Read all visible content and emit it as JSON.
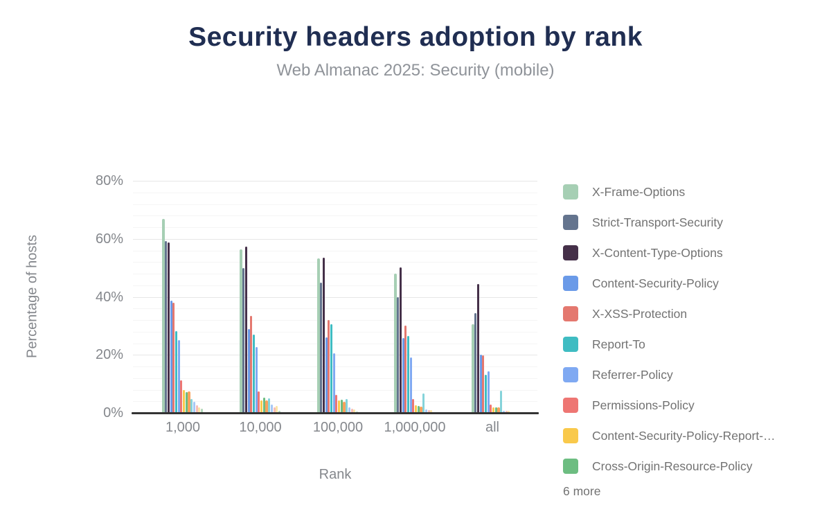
{
  "header": {
    "title": "Security headers adoption by rank",
    "subtitle": "Web Almanac 2025: Security (mobile)"
  },
  "chart_data": {
    "type": "bar",
    "title": "Security headers adoption by rank",
    "subtitle": "Web Almanac 2025: Security (mobile)",
    "xlabel": "Rank",
    "ylabel": "Percentage of hosts",
    "ylim": [
      0,
      80
    ],
    "yticks": [
      {
        "value": 0,
        "label": "0%"
      },
      {
        "value": 20,
        "label": "20%"
      },
      {
        "value": 40,
        "label": "40%"
      },
      {
        "value": 60,
        "label": "60%"
      },
      {
        "value": 80,
        "label": "80%"
      }
    ],
    "grid": "horizontal major every 20%, faint minor every 4%",
    "legend_position": "right",
    "legend_overflow_label": "6 more",
    "categories": [
      "1,000",
      "10,000",
      "100,000",
      "1,000,000",
      "all"
    ],
    "series": [
      {
        "name": "X-Frame-Options",
        "color": "#a6cfb4",
        "in_legend": true,
        "values": [
          66.8,
          56.4,
          53.3,
          47.9,
          30.5
        ]
      },
      {
        "name": "Strict-Transport-Security",
        "color": "#64748e",
        "in_legend": true,
        "values": [
          59.3,
          49.8,
          44.8,
          40.0,
          34.5
        ]
      },
      {
        "name": "X-Content-Type-Options",
        "color": "#453049",
        "in_legend": true,
        "values": [
          58.8,
          57.2,
          53.6,
          50.2,
          44.5
        ]
      },
      {
        "name": "Content-Security-Policy",
        "color": "#6a9ae8",
        "in_legend": true,
        "values": [
          38.8,
          28.8,
          26.1,
          25.7,
          20.0
        ]
      },
      {
        "name": "X-XSS-Protection",
        "color": "#e4786f",
        "in_legend": true,
        "values": [
          37.9,
          33.4,
          32.1,
          30.0,
          19.8
        ]
      },
      {
        "name": "Report-To",
        "color": "#3fbcc2",
        "in_legend": true,
        "values": [
          28.1,
          27.1,
          30.5,
          26.4,
          13.1
        ]
      },
      {
        "name": "Referrer-Policy",
        "color": "#7fa9f2",
        "in_legend": true,
        "values": [
          25.0,
          22.6,
          20.5,
          19.0,
          14.3
        ]
      },
      {
        "name": "Permissions-Policy",
        "color": "#ee7673",
        "in_legend": true,
        "values": [
          11.2,
          7.4,
          6.2,
          4.8,
          2.9
        ]
      },
      {
        "name": "Content-Security-Policy-Report-…",
        "color": "#f9c94b",
        "in_legend": true,
        "values": [
          7.9,
          4.4,
          4.3,
          2.6,
          1.9
        ]
      },
      {
        "name": "Cross-Origin-Resource-Policy",
        "color": "#6dbd81",
        "in_legend": true,
        "values": [
          7.1,
          5.2,
          4.5,
          2.4,
          1.9
        ]
      },
      {
        "name": "",
        "color": "#f8a25b",
        "in_legend": false,
        "values": [
          7.4,
          4.4,
          3.8,
          2.2,
          1.9
        ]
      },
      {
        "name": "",
        "color": "#85d3da",
        "in_legend": false,
        "values": [
          4.8,
          5.0,
          4.8,
          6.7,
          7.6
        ]
      },
      {
        "name": "",
        "color": "#a7c8f6",
        "in_legend": false,
        "values": [
          3.8,
          2.9,
          2.0,
          1.2,
          0.8
        ]
      },
      {
        "name": "",
        "color": "#f6bcb8",
        "in_legend": false,
        "values": [
          2.6,
          1.9,
          1.5,
          1.0,
          0.8
        ]
      },
      {
        "name": "",
        "color": "#fae5a6",
        "in_legend": false,
        "values": [
          1.9,
          2.4,
          1.3,
          1.0,
          0.8
        ]
      },
      {
        "name": "",
        "color": "#b2d8bb",
        "in_legend": false,
        "values": [
          1.5,
          0.8,
          0.5,
          0.3,
          0.3
        ]
      }
    ]
  },
  "colors": {
    "title": "#202e52",
    "subtitle": "#8f9399",
    "axis_text": "#84878c",
    "legend_text": "#727272",
    "axis_line": "#333333",
    "grid_major": "#e6e6e6",
    "grid_minor": "#f5f5f5",
    "background": "#ffffff"
  }
}
